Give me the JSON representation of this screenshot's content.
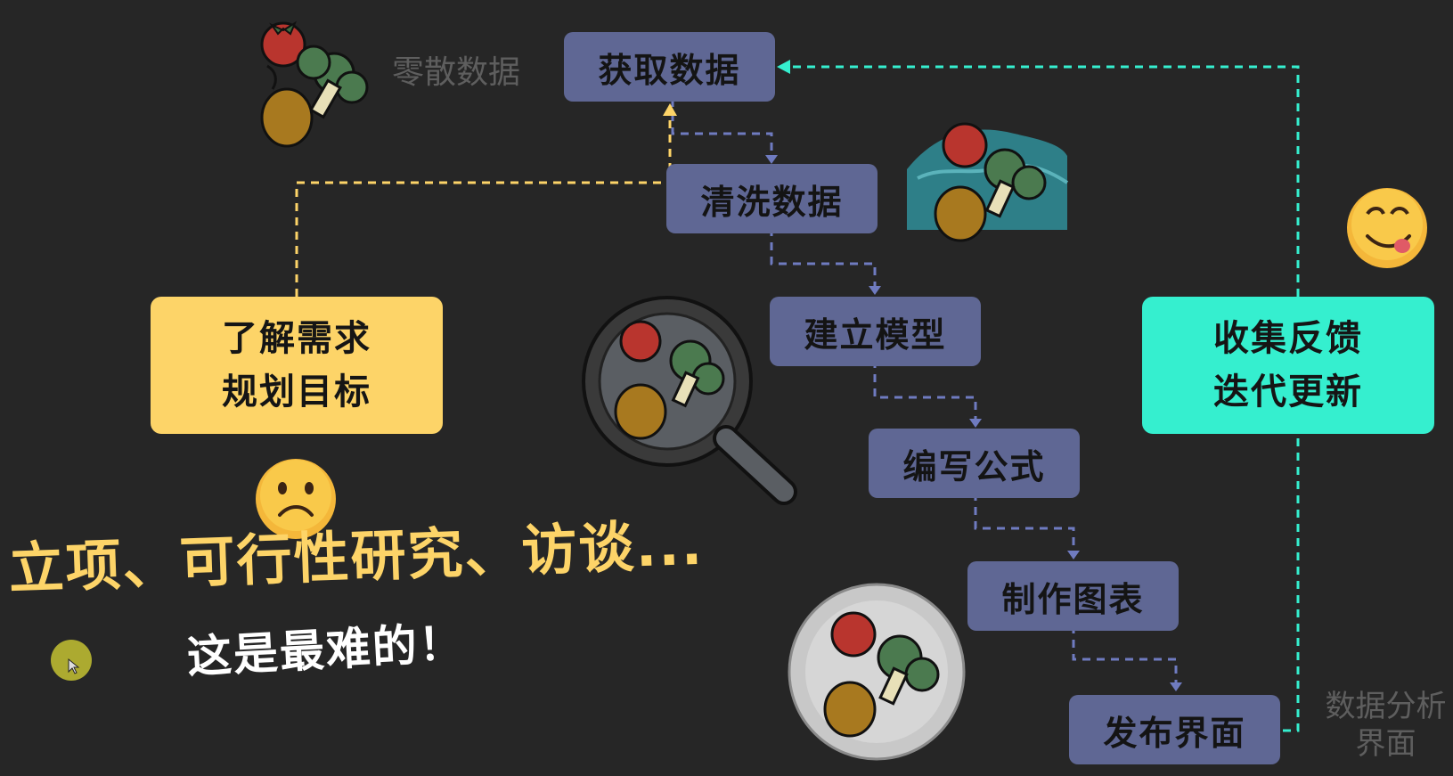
{
  "labels": {
    "scattered_data": "零散数据",
    "analysis_ui": [
      "数据分析",
      "界面"
    ]
  },
  "steps": {
    "get_data": "获取数据",
    "clean_data": "清洗数据",
    "build_model": "建立模型",
    "write_formula": "编写公式",
    "make_chart": "制作图表",
    "publish_ui": "发布界面"
  },
  "requirements": {
    "line1": "了解需求",
    "line2": "规划目标"
  },
  "feedback": {
    "line1": "收集反馈",
    "line2": "迭代更新"
  },
  "caption": {
    "main": "立项、可行性研究、访谈...",
    "sub": "这是最难的！"
  },
  "icons": {
    "veggies": "vegetables-icon",
    "washing": "washing-vegetables-icon",
    "pan": "frying-pan-icon",
    "plate": "dish-plate-icon",
    "sad": "frowning-face-icon",
    "yum": "yum-face-icon",
    "cursor": "mouse-cursor-icon"
  },
  "colors": {
    "background": "#262626",
    "step": "#5f6794",
    "requirements": "#fdd468",
    "feedback": "#35efcf",
    "connector": "#6f7bc0",
    "caption": "#fdd468"
  }
}
